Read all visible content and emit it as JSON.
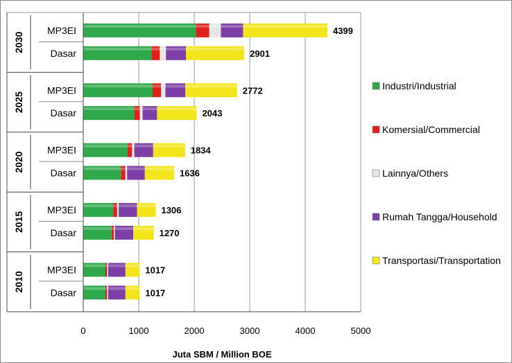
{
  "chart_data": {
    "type": "bar",
    "orientation": "horizontal",
    "stacked": true,
    "xlabel": "Juta SBM / Million BOE",
    "xlim": [
      0,
      5000
    ],
    "xticks": [
      0,
      1000,
      2000,
      3000,
      4000,
      5000
    ],
    "grid": true,
    "legend_position": "right",
    "groups": [
      {
        "year": "2030",
        "bars": [
          {
            "label": "MP3EI",
            "total": 4399,
            "values": [
              2030,
              240,
              210,
              400,
              1519
            ]
          },
          {
            "label": "Dasar",
            "total": 2901,
            "values": [
              1230,
              150,
              110,
              360,
              1051
            ]
          }
        ]
      },
      {
        "year": "2025",
        "bars": [
          {
            "label": "MP3EI",
            "total": 2772,
            "values": [
              1250,
              150,
              80,
              360,
              932
            ]
          },
          {
            "label": "Dasar",
            "total": 2043,
            "values": [
              920,
              100,
              50,
              260,
              713
            ]
          }
        ]
      },
      {
        "year": "2020",
        "bars": [
          {
            "label": "MP3EI",
            "total": 1834,
            "values": [
              800,
              80,
              40,
              340,
              574
            ]
          },
          {
            "label": "Dasar",
            "total": 1636,
            "values": [
              680,
              80,
              30,
              320,
              526
            ]
          }
        ]
      },
      {
        "year": "2015",
        "bars": [
          {
            "label": "MP3EI",
            "total": 1306,
            "values": [
              540,
              70,
              30,
              330,
              336
            ]
          },
          {
            "label": "Dasar",
            "total": 1270,
            "values": [
              510,
              40,
              20,
              330,
              370
            ]
          }
        ]
      },
      {
        "year": "2010",
        "bars": [
          {
            "label": "MP3EI",
            "total": 1017,
            "values": [
              400,
              30,
              20,
              310,
              257
            ]
          },
          {
            "label": "Dasar",
            "total": 1017,
            "values": [
              400,
              30,
              20,
              310,
              257
            ]
          }
        ]
      }
    ],
    "series": [
      {
        "name": "Industri/Industrial",
        "color": "#2ea84a"
      },
      {
        "name": "Komersial/Commercial",
        "color": "#e0201b"
      },
      {
        "name": "Lainnya/Others",
        "color": "#e6e6e6"
      },
      {
        "name": "Rumah Tangga/Household",
        "color": "#7b3fa6"
      },
      {
        "name": "Transportasi/Transportation",
        "color": "#f3e51c"
      }
    ]
  }
}
